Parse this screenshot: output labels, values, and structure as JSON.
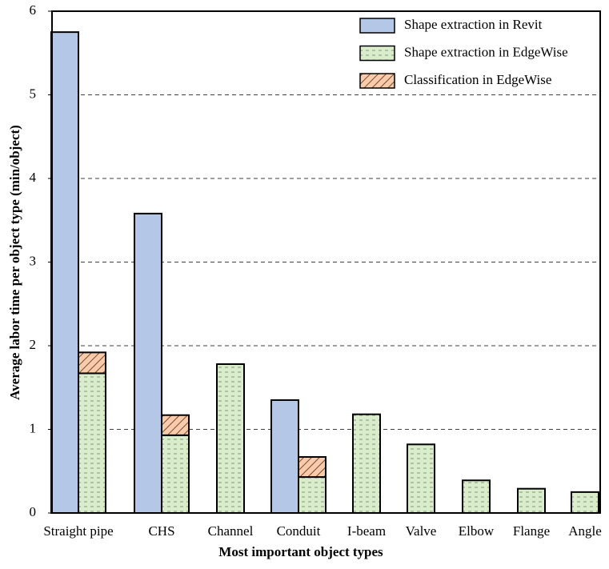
{
  "chart_data": {
    "type": "bar",
    "stacked": true,
    "x_label": "Most important object types",
    "y_label": "Average labor time per object type (min/object)",
    "categories": [
      "Straight pipe",
      "CHS",
      "Channel",
      "Conduit",
      "I-beam",
      "Valve",
      "Elbow",
      "Flange",
      "Angle"
    ],
    "series": [
      {
        "name": "Shape extraction in Revit",
        "color": "#b4c7e7",
        "stack": "revit",
        "values": [
          5.75,
          3.58,
          null,
          1.35,
          null,
          null,
          null,
          null,
          null
        ]
      },
      {
        "name": "Shape extraction in EdgeWise",
        "color": "#d9eccb",
        "stack": "edgewise",
        "values": [
          1.67,
          0.93,
          1.78,
          0.43,
          1.18,
          0.82,
          0.39,
          0.29,
          0.25
        ]
      },
      {
        "name": "Classification in EdgeWise",
        "color": "#f8cbad",
        "stack": "edgewise",
        "values": [
          0.25,
          0.24,
          null,
          0.24,
          null,
          null,
          null,
          null,
          null
        ]
      }
    ],
    "ylim": [
      0,
      6
    ],
    "yticks": [
      0,
      1,
      2,
      3,
      4,
      5,
      6
    ],
    "grid": true,
    "legend": "upper right"
  }
}
